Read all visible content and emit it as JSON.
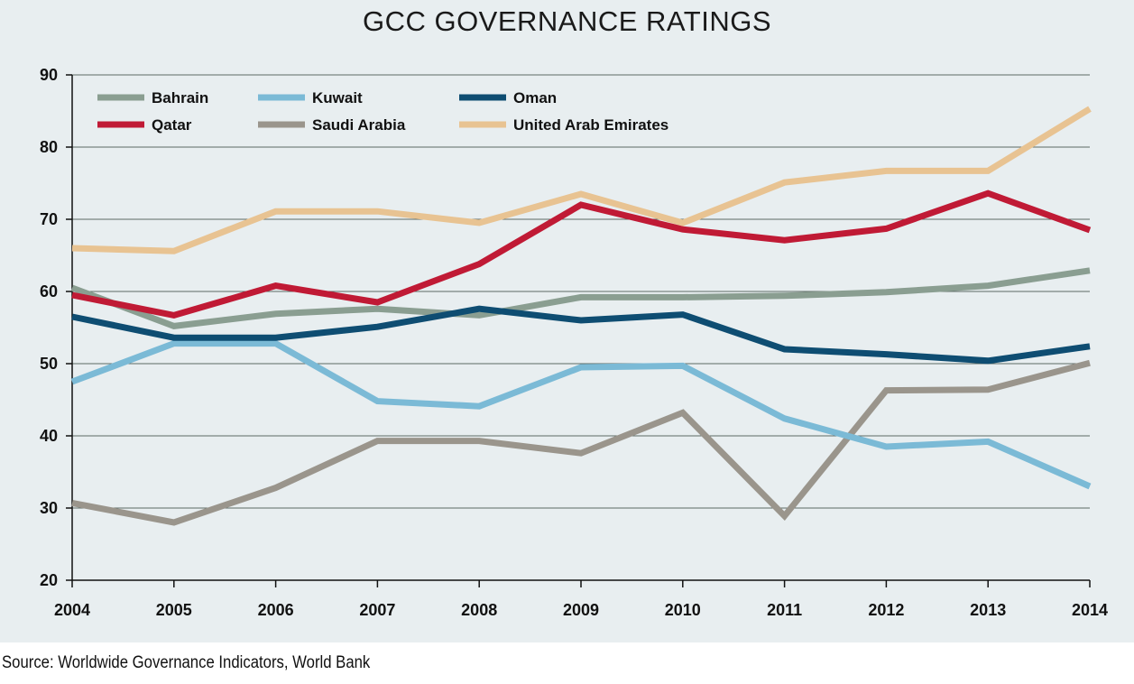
{
  "chart_data": {
    "type": "line",
    "title": "GCC GOVERNANCE RATINGS",
    "xlabel": "",
    "ylabel": "",
    "x": [
      "2004",
      "2005",
      "2006",
      "2007",
      "2008",
      "2009",
      "2010",
      "2011",
      "2012",
      "2013",
      "2014"
    ],
    "ylim": [
      20,
      90
    ],
    "yticks": [
      "20",
      "30",
      "40",
      "50",
      "60",
      "70",
      "80",
      "90"
    ],
    "grid": true,
    "legend_position": "top-left",
    "series": [
      {
        "name": "Bahrain",
        "color": "#8a9e91",
        "values": [
          60.5,
          55.2,
          56.9,
          57.6,
          56.7,
          59.2,
          59.2,
          59.4,
          59.9,
          60.8,
          62.9
        ]
      },
      {
        "name": "Kuwait",
        "color": "#7bbad6",
        "values": [
          47.5,
          52.8,
          52.8,
          44.8,
          44.1,
          49.5,
          49.7,
          42.4,
          38.5,
          39.2,
          33.0
        ]
      },
      {
        "name": "Oman",
        "color": "#0e4d72",
        "values": [
          56.5,
          53.6,
          53.6,
          55.1,
          57.6,
          56.0,
          56.8,
          52.0,
          51.3,
          50.4,
          52.4
        ]
      },
      {
        "name": "Qatar",
        "color": "#c01a35",
        "values": [
          59.5,
          56.7,
          60.8,
          58.5,
          63.8,
          72.0,
          68.6,
          67.1,
          68.7,
          73.6,
          68.5
        ]
      },
      {
        "name": "Saudi Arabia",
        "color": "#9a958c",
        "values": [
          30.7,
          28.0,
          32.8,
          39.3,
          39.3,
          37.6,
          43.2,
          28.9,
          46.3,
          46.4,
          50.1
        ]
      },
      {
        "name": "United Arab Emirates",
        "color": "#e8c392",
        "values": [
          66.0,
          65.6,
          71.1,
          71.1,
          69.5,
          73.5,
          69.5,
          75.1,
          76.7,
          76.7,
          85.3
        ]
      }
    ]
  },
  "source": "Source: Worldwide Governance Indicators, World Bank"
}
